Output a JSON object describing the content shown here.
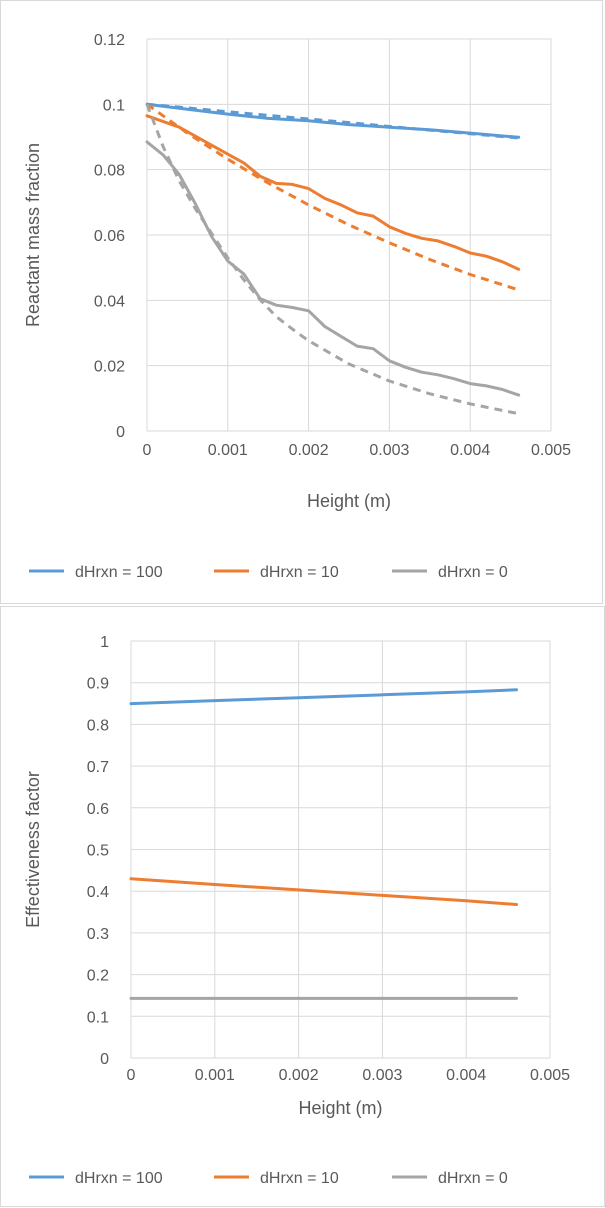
{
  "chart_data": [
    {
      "type": "line",
      "title": "",
      "xlabel": "Height (m)",
      "ylabel": "Reactant mass fraction",
      "xlim": [
        0,
        0.005
      ],
      "ylim": [
        0,
        0.12
      ],
      "x_ticks": [
        "0",
        "0.001",
        "0.002",
        "0.003",
        "0.004",
        "0.005"
      ],
      "y_ticks": [
        "0",
        "0.02",
        "0.04",
        "0.06",
        "0.08",
        "0.1",
        "0.12"
      ],
      "grid": true,
      "legend_position": "bottom",
      "legend": [
        {
          "label": "dHrxn = 100",
          "color": "#5b9bd5"
        },
        {
          "label": "dHrxn = 10",
          "color": "#ed7d31"
        },
        {
          "label": "dHrxn = 0",
          "color": "#a5a5a5"
        }
      ],
      "series": [
        {
          "name": "dHrxn = 100",
          "style": "solid",
          "color": "#5b9bd5",
          "points": [
            [
              0,
              0.1
            ],
            [
              0.0005,
              0.0985
            ],
            [
              0.001,
              0.097
            ],
            [
              0.0015,
              0.0957
            ],
            [
              0.002,
              0.095
            ],
            [
              0.0025,
              0.0938
            ],
            [
              0.003,
              0.093
            ],
            [
              0.0035,
              0.0922
            ],
            [
              0.004,
              0.0912
            ],
            [
              0.0046,
              0.0899
            ]
          ]
        },
        {
          "style": "dashed",
          "color": "#5b9bd5",
          "points": [
            [
              0,
              0.1
            ],
            [
              0.0005,
              0.0989
            ],
            [
              0.001,
              0.0977
            ],
            [
              0.0015,
              0.0966
            ],
            [
              0.002,
              0.0955
            ],
            [
              0.0025,
              0.0944
            ],
            [
              0.003,
              0.0932
            ],
            [
              0.0035,
              0.0921
            ],
            [
              0.004,
              0.091
            ],
            [
              0.0046,
              0.0897
            ]
          ]
        },
        {
          "name": "dHrxn = 10",
          "style": "solid",
          "color": "#ed7d31",
          "points": [
            [
              0,
              0.0965
            ],
            [
              0.0004,
              0.093
            ],
            [
              0.0008,
              0.0875
            ],
            [
              0.0012,
              0.082
            ],
            [
              0.0014,
              0.078
            ],
            [
              0.0016,
              0.0758
            ],
            [
              0.0018,
              0.0755
            ],
            [
              0.002,
              0.0742
            ],
            [
              0.0022,
              0.0712
            ],
            [
              0.0024,
              0.0692
            ],
            [
              0.0026,
              0.0668
            ],
            [
              0.0028,
              0.0658
            ],
            [
              0.003,
              0.0625
            ],
            [
              0.0032,
              0.0605
            ],
            [
              0.0034,
              0.059
            ],
            [
              0.0036,
              0.0582
            ],
            [
              0.0038,
              0.0565
            ],
            [
              0.004,
              0.0545
            ],
            [
              0.0042,
              0.0535
            ],
            [
              0.0044,
              0.0518
            ],
            [
              0.0046,
              0.0495
            ]
          ]
        },
        {
          "style": "dashed",
          "color": "#ed7d31",
          "points": [
            [
              0,
              0.1
            ],
            [
              0.0005,
              0.0912
            ],
            [
              0.001,
              0.0832
            ],
            [
              0.0015,
              0.0759
            ],
            [
              0.002,
              0.0692
            ],
            [
              0.0025,
              0.0631
            ],
            [
              0.003,
              0.0576
            ],
            [
              0.0035,
              0.0525
            ],
            [
              0.004,
              0.0479
            ],
            [
              0.0046,
              0.0432
            ]
          ]
        },
        {
          "name": "dHrxn = 0",
          "style": "solid",
          "color": "#a5a5a5",
          "points": [
            [
              0,
              0.0885
            ],
            [
              0.0002,
              0.0845
            ],
            [
              0.0004,
              0.0785
            ],
            [
              0.0006,
              0.0695
            ],
            [
              0.0008,
              0.0595
            ],
            [
              0.001,
              0.052
            ],
            [
              0.0012,
              0.048
            ],
            [
              0.0014,
              0.0405
            ],
            [
              0.0016,
              0.0385
            ],
            [
              0.0018,
              0.0378
            ],
            [
              0.002,
              0.0368
            ],
            [
              0.0022,
              0.032
            ],
            [
              0.0024,
              0.029
            ],
            [
              0.0026,
              0.026
            ],
            [
              0.0028,
              0.0252
            ],
            [
              0.003,
              0.0215
            ],
            [
              0.0032,
              0.0195
            ],
            [
              0.0034,
              0.018
            ],
            [
              0.0036,
              0.0172
            ],
            [
              0.0038,
              0.016
            ],
            [
              0.004,
              0.0145
            ],
            [
              0.0042,
              0.0138
            ],
            [
              0.0044,
              0.0127
            ],
            [
              0.0046,
              0.011
            ]
          ]
        },
        {
          "style": "dashed",
          "color": "#a5a5a5",
          "points": [
            [
              0,
              0.1
            ],
            [
              0.0002,
              0.087
            ],
            [
              0.0004,
              0.0765
            ],
            [
              0.0006,
              0.068
            ],
            [
              0.0008,
              0.0605
            ],
            [
              0.001,
              0.053
            ],
            [
              0.0012,
              0.0462
            ],
            [
              0.0014,
              0.0402
            ],
            [
              0.0016,
              0.035
            ],
            [
              0.0018,
              0.0312
            ],
            [
              0.002,
              0.0276
            ],
            [
              0.0025,
              0.0205
            ],
            [
              0.003,
              0.0153
            ],
            [
              0.0035,
              0.0114
            ],
            [
              0.004,
              0.0083
            ],
            [
              0.0046,
              0.0053
            ]
          ]
        }
      ]
    },
    {
      "type": "line",
      "title": "",
      "xlabel": "Height (m)",
      "ylabel": "Effectiveness factor",
      "xlim": [
        0,
        0.005
      ],
      "ylim": [
        0,
        1
      ],
      "x_ticks": [
        "0",
        "0.001",
        "0.002",
        "0.003",
        "0.004",
        "0.005"
      ],
      "y_ticks": [
        "0",
        "0.1",
        "0.2",
        "0.3",
        "0.4",
        "0.5",
        "0.6",
        "0.7",
        "0.8",
        "0.9",
        "1"
      ],
      "grid": true,
      "legend_position": "bottom",
      "legend": [
        {
          "label": "dHrxn = 100",
          "color": "#5b9bd5"
        },
        {
          "label": "dHrxn = 10",
          "color": "#ed7d31"
        },
        {
          "label": "dHrxn = 0",
          "color": "#a5a5a5"
        }
      ],
      "series": [
        {
          "name": "dHrxn = 100",
          "style": "solid",
          "color": "#5b9bd5",
          "points": [
            [
              0,
              0.85
            ],
            [
              0.001,
              0.857
            ],
            [
              0.002,
              0.864
            ],
            [
              0.003,
              0.871
            ],
            [
              0.004,
              0.878
            ],
            [
              0.0046,
              0.883
            ]
          ]
        },
        {
          "name": "dHrxn = 10",
          "style": "solid",
          "color": "#ed7d31",
          "points": [
            [
              0,
              0.43
            ],
            [
              0.001,
              0.416
            ],
            [
              0.002,
              0.403
            ],
            [
              0.003,
              0.39
            ],
            [
              0.004,
              0.377
            ],
            [
              0.0046,
              0.368
            ]
          ]
        },
        {
          "name": "dHrxn = 0",
          "style": "solid",
          "color": "#a5a5a5",
          "points": [
            [
              0,
              0.143
            ],
            [
              0.001,
              0.143
            ],
            [
              0.002,
              0.143
            ],
            [
              0.003,
              0.143
            ],
            [
              0.004,
              0.143
            ],
            [
              0.0046,
              0.143
            ]
          ]
        }
      ]
    }
  ]
}
